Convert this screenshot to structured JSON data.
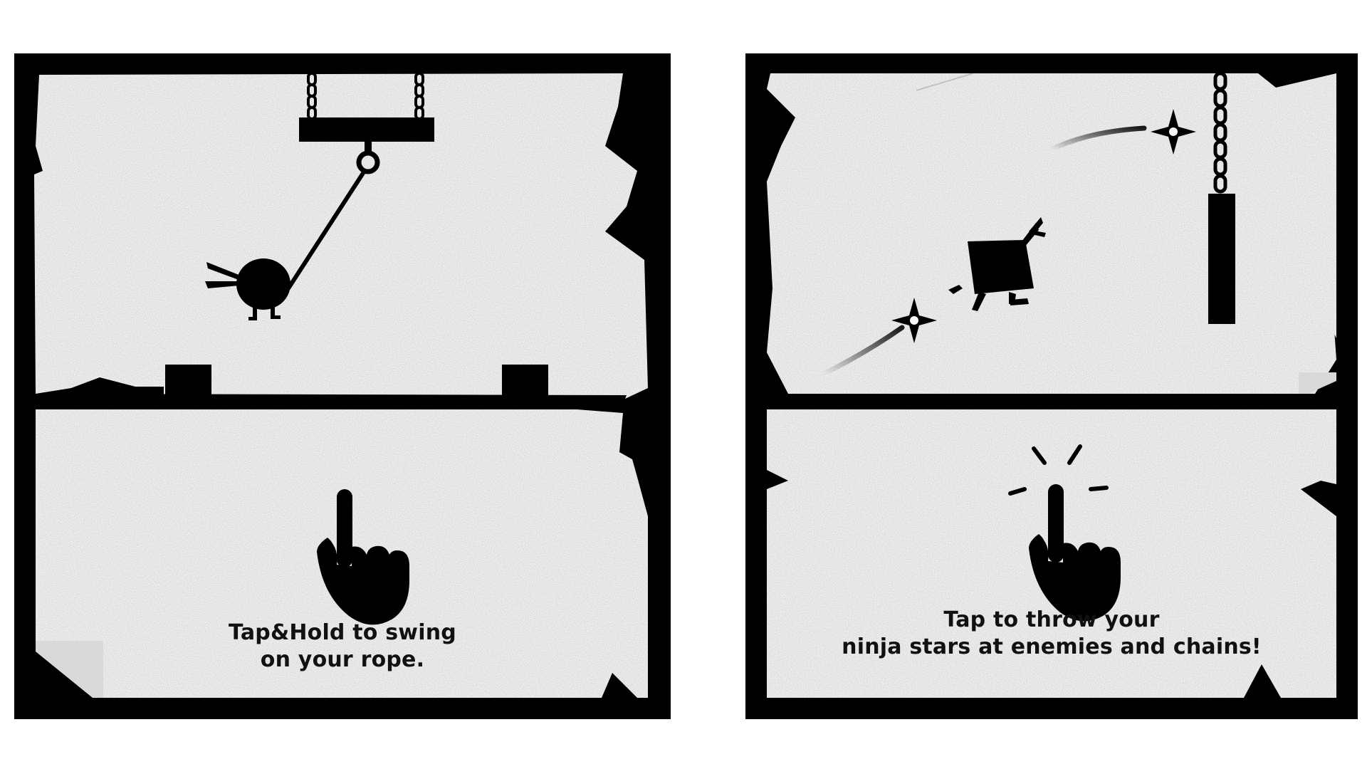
{
  "tutorial": {
    "panels": [
      {
        "id": "swing",
        "caption_line1": "Tap&Hold to swing",
        "caption_line2": "on your rope."
      },
      {
        "id": "throw",
        "caption_line1": "Tap to throw your",
        "caption_line2": "ninja stars at enemies and chains!"
      }
    ]
  },
  "colors": {
    "ink": "#000000",
    "paper": "#f6f6f6",
    "corner_fold": "#d9d9d9"
  },
  "icons": {
    "tap_hold": "pointing-hand-icon",
    "tap": "tapping-hand-icon",
    "projectile": "ninja-star-icon"
  }
}
